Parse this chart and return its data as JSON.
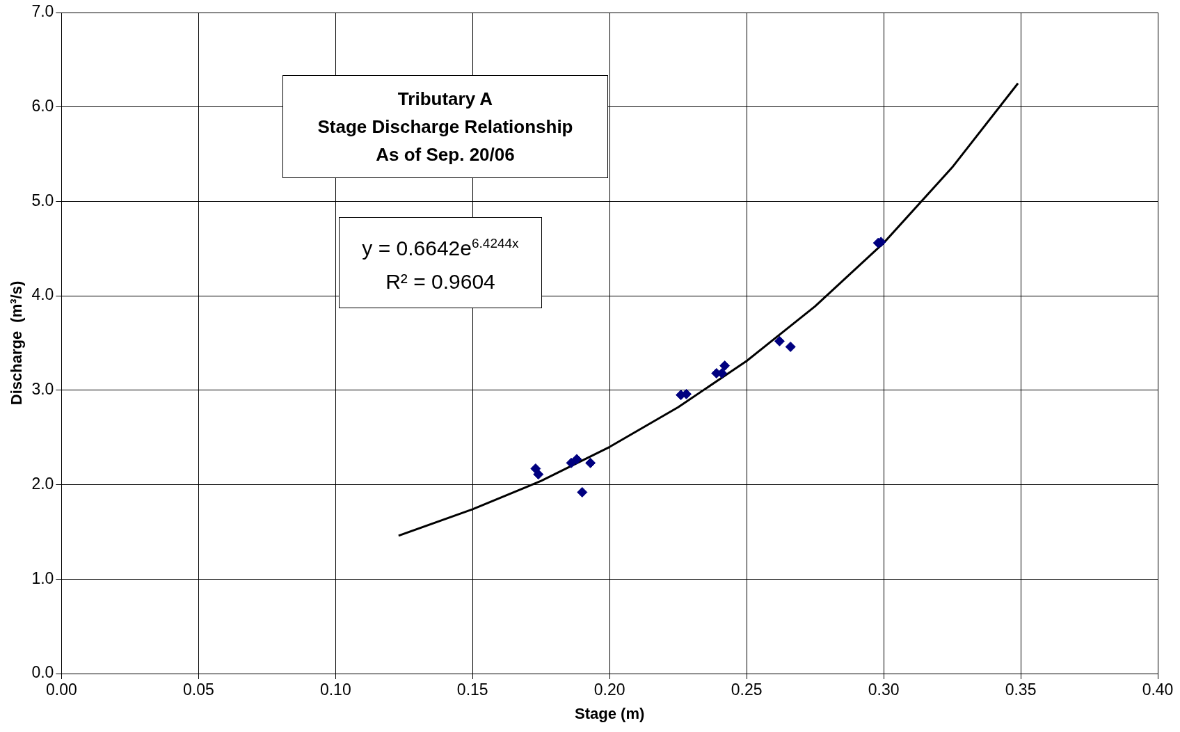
{
  "chart_data": {
    "type": "scatter",
    "title": "Tributary A\nStage Discharge Relationship\nAs of Sep. 20/06",
    "xlabel": "Stage (m)",
    "ylabel": "Discharge  (m³/s)",
    "annotations": [
      "y = 0.6642e$^{6.4244x}$\nR² = 0.9604"
    ],
    "series": [
      {
        "color": "#000080",
        "marker": "diamond",
        "x": [
          0.173,
          0.174,
          0.186,
          0.188,
          0.19,
          0.193,
          0.226,
          0.228,
          0.239,
          0.241,
          0.242,
          0.262,
          0.266,
          0.298,
          0.299
        ],
        "values": [
          2.17,
          2.11,
          2.23,
          2.27,
          1.92,
          2.23,
          2.95,
          2.96,
          3.18,
          3.18,
          3.26,
          3.52,
          3.46,
          4.56,
          4.57
        ]
      },
      {
        "type": "line",
        "color": "#000000",
        "marker": "none",
        "x": [
          0.123,
          0.15,
          0.175,
          0.2,
          0.225,
          0.25,
          0.275,
          0.3,
          0.325,
          0.349
        ],
        "values": [
          1.46,
          1.74,
          2.04,
          2.4,
          2.82,
          3.31,
          3.89,
          4.56,
          5.36,
          6.25
        ]
      }
    ],
    "xlim": [
      0,
      0.4
    ],
    "xticks": [
      {
        "value": 0,
        "label": "0.00"
      },
      {
        "value": 0.05,
        "label": "0.05"
      },
      {
        "value": 0.1,
        "label": "0.10"
      },
      {
        "value": 0.15,
        "label": "0.15"
      },
      {
        "value": 0.2,
        "label": "0.20"
      },
      {
        "value": 0.25,
        "label": "0.25"
      },
      {
        "value": 0.3,
        "label": "0.30"
      },
      {
        "value": 0.35,
        "label": "0.35"
      },
      {
        "value": 0.4,
        "label": "0.40"
      }
    ],
    "ylim": [
      0,
      7
    ],
    "yticks": [
      {
        "value": 0,
        "label": "0.0"
      },
      {
        "value": 1,
        "label": "1.0"
      },
      {
        "value": 2,
        "label": "2.0"
      },
      {
        "value": 3,
        "label": "3.0"
      },
      {
        "value": 4,
        "label": "4.0"
      },
      {
        "value": 5,
        "label": "5.0"
      },
      {
        "value": 6,
        "label": "6.0"
      },
      {
        "value": 7,
        "label": "7.0"
      }
    ],
    "grid": true,
    "legend": false
  }
}
